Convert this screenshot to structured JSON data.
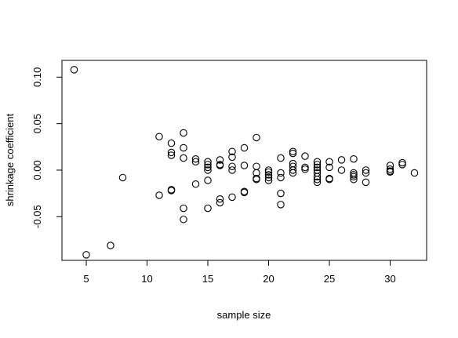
{
  "chart_data": {
    "type": "scatter",
    "title": "",
    "xlabel": "sample size",
    "ylabel": "shrinkage coefficient",
    "xlim": [
      3,
      33
    ],
    "ylim": [
      -0.097,
      0.118
    ],
    "xticks": [
      5,
      10,
      15,
      20,
      25,
      30
    ],
    "yticks": [
      -0.05,
      0.0,
      0.05,
      0.1
    ],
    "xtick_labels": [
      "5",
      "10",
      "15",
      "20",
      "25",
      "30"
    ],
    "ytick_labels": [
      "-0.05",
      "0.00",
      "0.05",
      "0.10"
    ],
    "grid": false,
    "marker": "open-circle",
    "points": [
      {
        "x": 4,
        "y": 0.108
      },
      {
        "x": 5,
        "y": -0.091
      },
      {
        "x": 7,
        "y": -0.081
      },
      {
        "x": 8,
        "y": -0.008
      },
      {
        "x": 11,
        "y": 0.036
      },
      {
        "x": 11,
        "y": -0.027
      },
      {
        "x": 12,
        "y": 0.029
      },
      {
        "x": 12,
        "y": 0.019
      },
      {
        "x": 12,
        "y": 0.016
      },
      {
        "x": 12,
        "y": -0.021
      },
      {
        "x": 12,
        "y": -0.022
      },
      {
        "x": 13,
        "y": 0.04
      },
      {
        "x": 13,
        "y": 0.024
      },
      {
        "x": 13,
        "y": 0.013
      },
      {
        "x": 13,
        "y": -0.041
      },
      {
        "x": 13,
        "y": -0.053
      },
      {
        "x": 14,
        "y": 0.012
      },
      {
        "x": 14,
        "y": 0.009
      },
      {
        "x": 14,
        "y": -0.015
      },
      {
        "x": 15,
        "y": 0.009
      },
      {
        "x": 15,
        "y": 0.006
      },
      {
        "x": 15,
        "y": 0.003
      },
      {
        "x": 15,
        "y": 0.0
      },
      {
        "x": 15,
        "y": -0.011
      },
      {
        "x": 15,
        "y": -0.041
      },
      {
        "x": 16,
        "y": 0.011
      },
      {
        "x": 16,
        "y": 0.006
      },
      {
        "x": 16,
        "y": 0.005
      },
      {
        "x": 16,
        "y": -0.031
      },
      {
        "x": 16,
        "y": -0.035
      },
      {
        "x": 17,
        "y": 0.02
      },
      {
        "x": 17,
        "y": 0.014
      },
      {
        "x": 17,
        "y": 0.004
      },
      {
        "x": 17,
        "y": 0.0
      },
      {
        "x": 17,
        "y": -0.029
      },
      {
        "x": 18,
        "y": 0.024
      },
      {
        "x": 18,
        "y": 0.005
      },
      {
        "x": 18,
        "y": -0.023
      },
      {
        "x": 18,
        "y": -0.024
      },
      {
        "x": 19,
        "y": 0.035
      },
      {
        "x": 19,
        "y": 0.004
      },
      {
        "x": 19,
        "y": -0.003
      },
      {
        "x": 19,
        "y": -0.009
      },
      {
        "x": 19,
        "y": -0.01
      },
      {
        "x": 20,
        "y": 0.0
      },
      {
        "x": 20,
        "y": -0.002
      },
      {
        "x": 20,
        "y": -0.005
      },
      {
        "x": 20,
        "y": -0.008
      },
      {
        "x": 20,
        "y": -0.011
      },
      {
        "x": 21,
        "y": 0.013
      },
      {
        "x": 21,
        "y": -0.003
      },
      {
        "x": 21,
        "y": -0.008
      },
      {
        "x": 21,
        "y": -0.025
      },
      {
        "x": 21,
        "y": -0.037
      },
      {
        "x": 22,
        "y": 0.02
      },
      {
        "x": 22,
        "y": 0.018
      },
      {
        "x": 22,
        "y": 0.007
      },
      {
        "x": 22,
        "y": 0.004
      },
      {
        "x": 22,
        "y": 0.0
      },
      {
        "x": 22,
        "y": -0.003
      },
      {
        "x": 23,
        "y": 0.015
      },
      {
        "x": 23,
        "y": 0.003
      },
      {
        "x": 23,
        "y": 0.001
      },
      {
        "x": 24,
        "y": 0.009
      },
      {
        "x": 24,
        "y": 0.006
      },
      {
        "x": 24,
        "y": 0.003
      },
      {
        "x": 24,
        "y": 0.0
      },
      {
        "x": 24,
        "y": -0.003
      },
      {
        "x": 24,
        "y": -0.007
      },
      {
        "x": 24,
        "y": -0.01
      },
      {
        "x": 24,
        "y": -0.013
      },
      {
        "x": 25,
        "y": 0.009
      },
      {
        "x": 25,
        "y": 0.003
      },
      {
        "x": 25,
        "y": -0.009
      },
      {
        "x": 25,
        "y": -0.01
      },
      {
        "x": 26,
        "y": 0.011
      },
      {
        "x": 26,
        "y": 0.0
      },
      {
        "x": 27,
        "y": 0.012
      },
      {
        "x": 27,
        "y": -0.003
      },
      {
        "x": 27,
        "y": -0.005
      },
      {
        "x": 27,
        "y": -0.007
      },
      {
        "x": 27,
        "y": -0.01
      },
      {
        "x": 28,
        "y": 0.0
      },
      {
        "x": 28,
        "y": -0.003
      },
      {
        "x": 28,
        "y": -0.013
      },
      {
        "x": 30,
        "y": 0.005
      },
      {
        "x": 30,
        "y": 0.001
      },
      {
        "x": 30,
        "y": -0.001
      },
      {
        "x": 30,
        "y": -0.002
      },
      {
        "x": 31,
        "y": 0.008
      },
      {
        "x": 31,
        "y": 0.006
      },
      {
        "x": 32,
        "y": -0.003
      }
    ]
  }
}
